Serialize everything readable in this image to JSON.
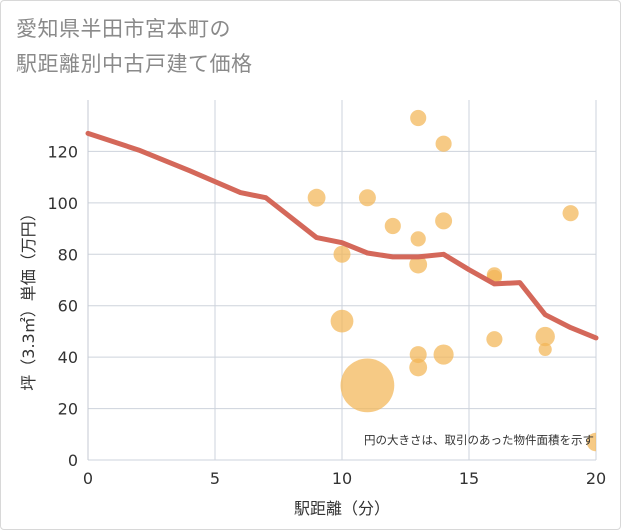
{
  "chart_data": {
    "type": "scatter",
    "title_lines": [
      "愛知県半田市宮本町の",
      "駅距離別中古戸建て価格"
    ],
    "xlabel": "駅距離（分）",
    "ylabel": "坪（3.3㎡）単価（万円）",
    "xlim": [
      0,
      20
    ],
    "ylim": [
      0,
      140
    ],
    "x_ticks": [
      "0",
      "5",
      "10",
      "15",
      "20"
    ],
    "y_ticks": [
      "0",
      "20",
      "40",
      "60",
      "80",
      "100",
      "120"
    ],
    "grid": true,
    "note": "円の大きさは、取引のあった物件面積を示す",
    "colors": {
      "points": "#f3b556",
      "trend": "#d4685a",
      "grid": "#cdd3dc"
    },
    "trend_line": {
      "x": [
        0,
        2,
        4,
        6,
        7,
        9,
        10,
        11,
        12,
        13,
        14,
        15,
        16,
        17,
        18,
        19,
        20
      ],
      "y": [
        127,
        120.5,
        112.5,
        104,
        102,
        86.5,
        84.5,
        80.5,
        79,
        79,
        80,
        74,
        68.5,
        69,
        56.5,
        51.5,
        47.5
      ]
    },
    "points": [
      {
        "x": 9,
        "y": 102,
        "size": 1.1
      },
      {
        "x": 10,
        "y": 80,
        "size": 1
      },
      {
        "x": 10,
        "y": 54,
        "size": 1.8
      },
      {
        "x": 11,
        "y": 102,
        "size": 1
      },
      {
        "x": 11,
        "y": 29,
        "size": 10
      },
      {
        "x": 12,
        "y": 91,
        "size": 0.9
      },
      {
        "x": 13,
        "y": 133,
        "size": 0.9
      },
      {
        "x": 13,
        "y": 86,
        "size": 0.8
      },
      {
        "x": 13,
        "y": 76,
        "size": 1.1
      },
      {
        "x": 13,
        "y": 41,
        "size": 1
      },
      {
        "x": 13,
        "y": 36,
        "size": 1.1
      },
      {
        "x": 14,
        "y": 123,
        "size": 0.9
      },
      {
        "x": 14,
        "y": 93,
        "size": 1
      },
      {
        "x": 14,
        "y": 41,
        "size": 1.4
      },
      {
        "x": 16,
        "y": 72,
        "size": 0.8
      },
      {
        "x": 16,
        "y": 71,
        "size": 0.8
      },
      {
        "x": 16,
        "y": 47,
        "size": 0.9
      },
      {
        "x": 18,
        "y": 48,
        "size": 1.3
      },
      {
        "x": 18,
        "y": 43,
        "size": 0.6
      },
      {
        "x": 19,
        "y": 96,
        "size": 0.9
      },
      {
        "x": 20,
        "y": 7,
        "size": 1.2
      }
    ]
  }
}
